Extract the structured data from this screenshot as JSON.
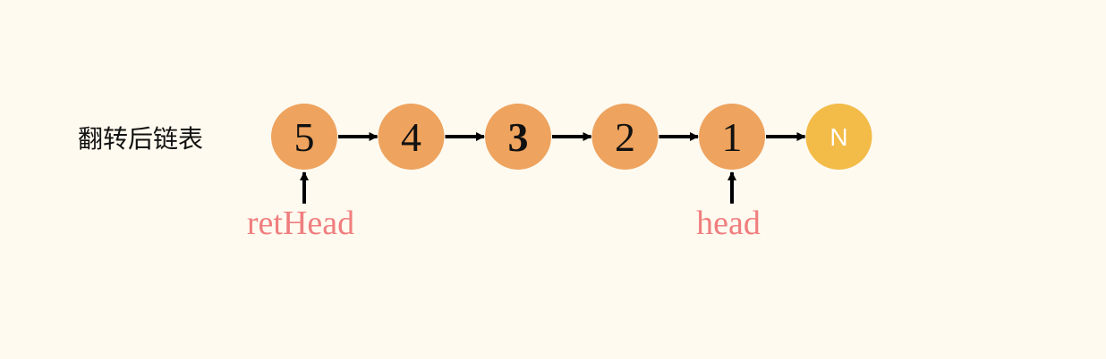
{
  "title": "翻转后链表",
  "nodes": [
    {
      "label": "5",
      "bold": false
    },
    {
      "label": "4",
      "bold": false
    },
    {
      "label": "3",
      "bold": true
    },
    {
      "label": "2",
      "bold": false
    },
    {
      "label": "1",
      "bold": false
    }
  ],
  "null_node": {
    "label": "N"
  },
  "pointers": [
    {
      "label": "retHead",
      "node_index": 0
    },
    {
      "label": "head",
      "node_index": 4
    }
  ],
  "colors": {
    "background": "#fefaf0",
    "node": "#eea35e",
    "null_node": "#f3bb48",
    "arrow": "#000000",
    "pointer_label": "#f07e7e",
    "text": "#111111"
  }
}
